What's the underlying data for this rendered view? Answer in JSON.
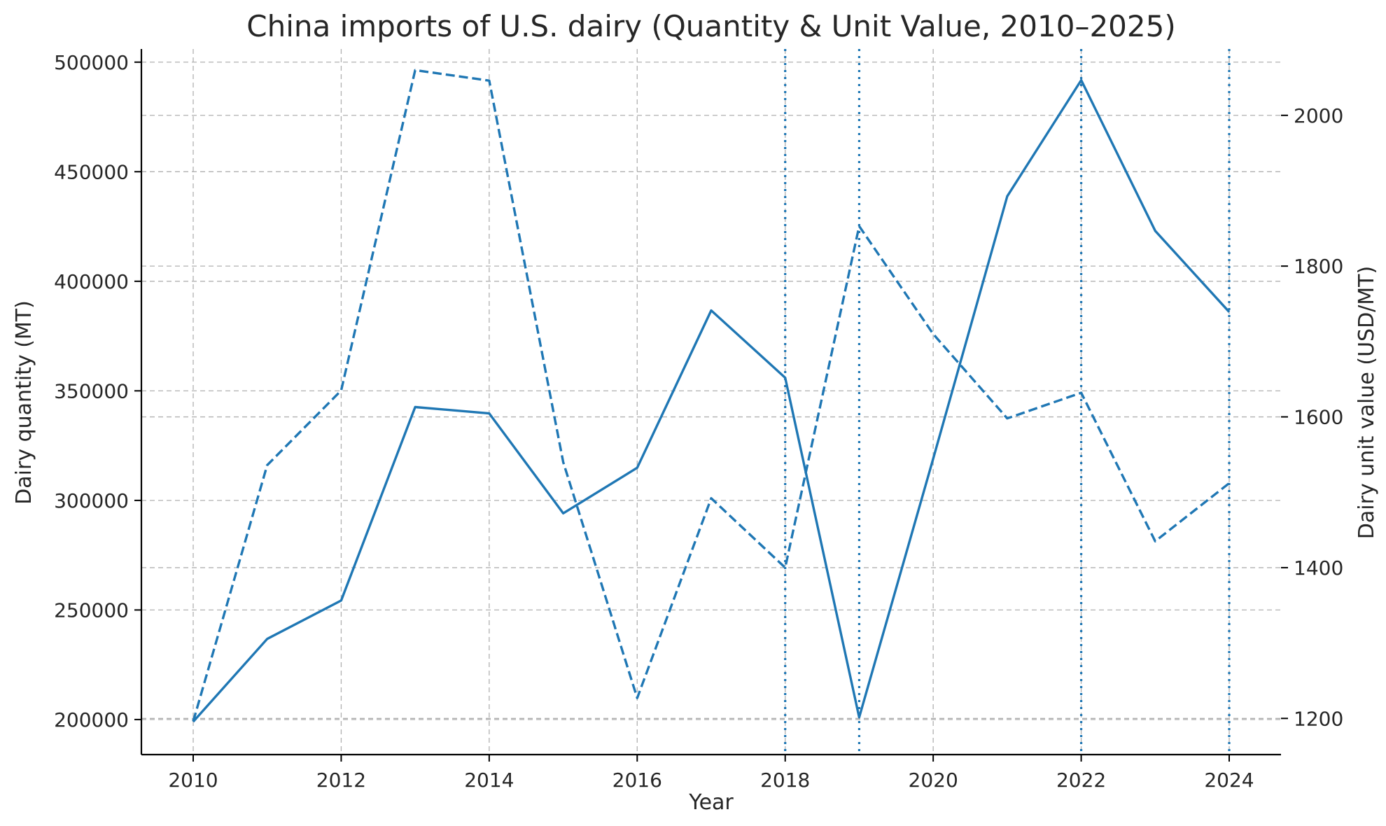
{
  "chart_data": {
    "type": "line",
    "title": "China imports of U.S. dairy (Quantity & Unit Value, 2010–2025)",
    "xlabel": "Year",
    "ylabel_left": "Dairy quantity (MT)",
    "ylabel_right": "Dairy unit value (USD/MT)",
    "x": [
      2010,
      2011,
      2012,
      2013,
      2014,
      2015,
      2016,
      2017,
      2018,
      2019,
      2020,
      2021,
      2022,
      2023,
      2024
    ],
    "x_ticks": [
      2010,
      2012,
      2014,
      2016,
      2018,
      2020,
      2022,
      2024
    ],
    "ylim_left": [
      184000,
      506000
    ],
    "yticks_left": [
      200000,
      250000,
      300000,
      350000,
      400000,
      450000,
      500000
    ],
    "ylim_right": [
      1152,
      2088
    ],
    "yticks_right": [
      1200,
      1400,
      1600,
      1800,
      2000
    ],
    "grid": true,
    "color": "#1f77b4",
    "series": [
      {
        "axis": "left",
        "style": "solid",
        "values": [
          199000,
          236800,
          254300,
          342600,
          339700,
          294100,
          314900,
          386700,
          356000,
          201000,
          319000,
          438800,
          491800,
          423000,
          386000
        ]
      },
      {
        "axis": "right",
        "style": "dashed",
        "values": [
          1196,
          1536,
          1635,
          2060,
          2046,
          1540,
          1227,
          1492,
          1400,
          1853,
          1710,
          1598,
          1632,
          1435,
          1512
        ]
      }
    ],
    "event_lines_x": [
      2018,
      2019,
      2022,
      2024
    ]
  }
}
